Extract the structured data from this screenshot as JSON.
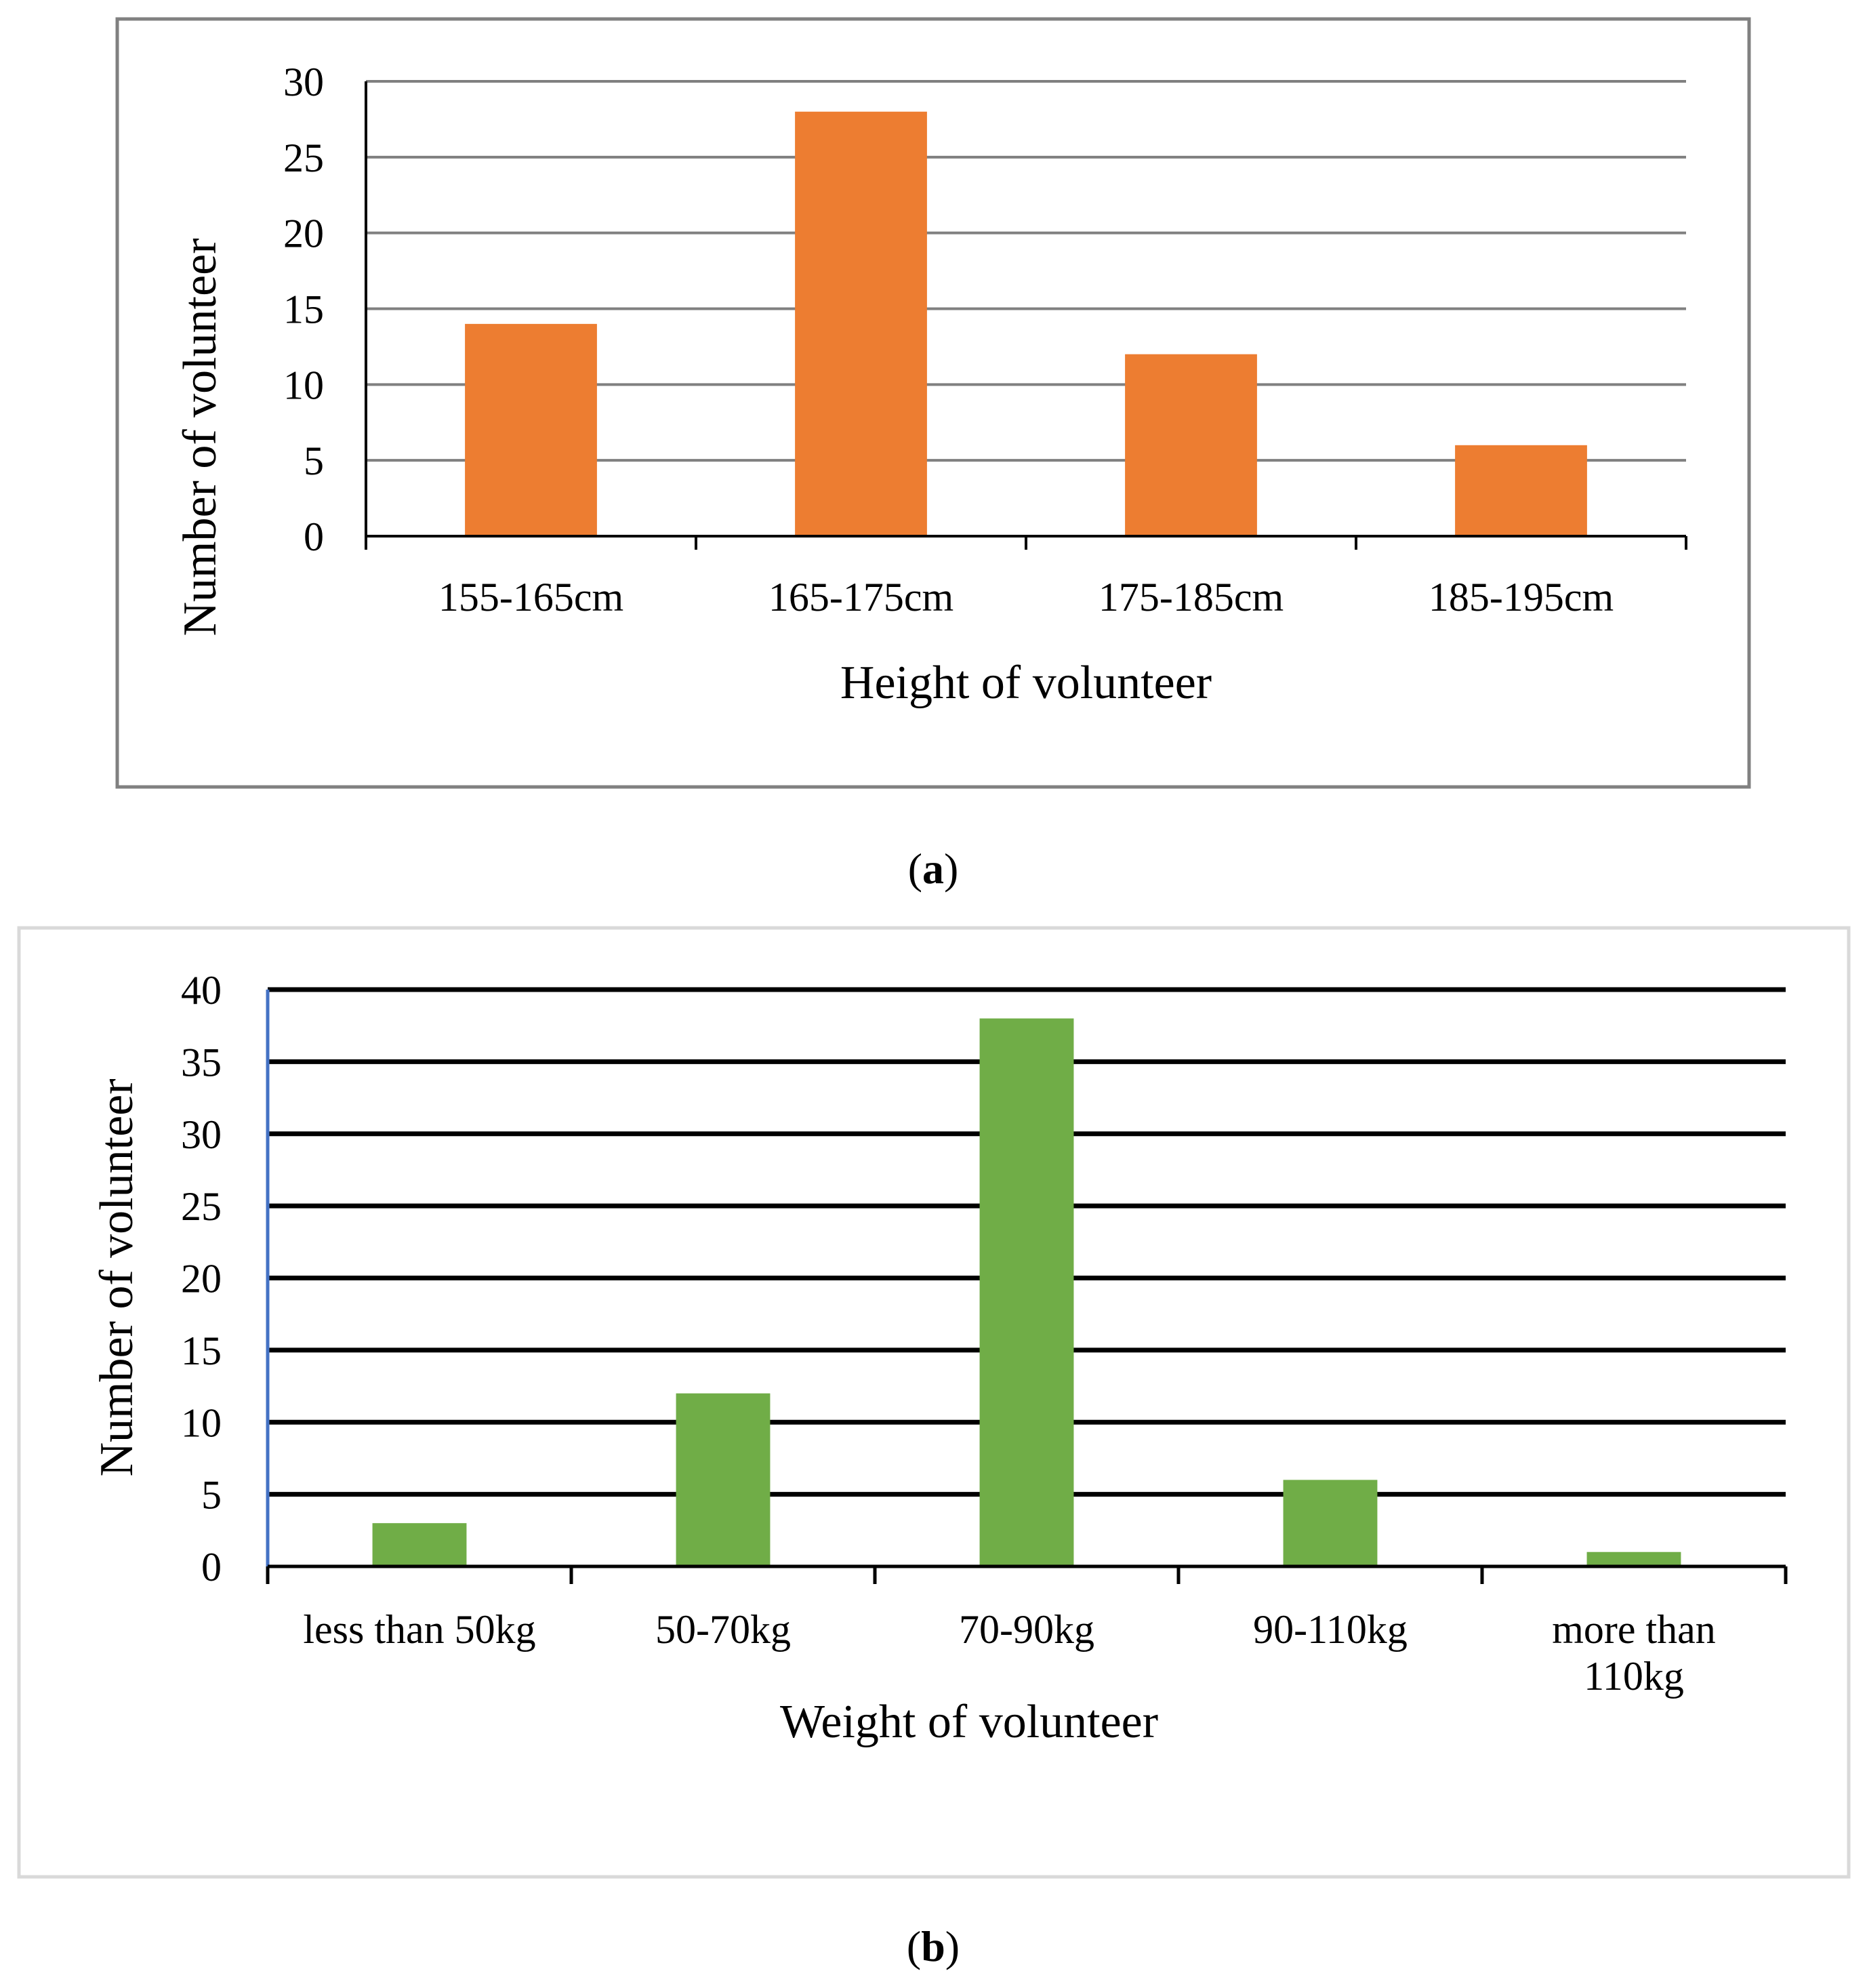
{
  "chart_data": [
    {
      "type": "bar",
      "panel_label": "a",
      "title": "",
      "categories": [
        "155-165cm",
        "165-175cm",
        "175-185cm",
        "185-195cm"
      ],
      "values": [
        14,
        28,
        12,
        6
      ],
      "xlabel": "Height of volunteer",
      "ylabel": "Number of volunteer",
      "ylim": [
        0,
        30
      ],
      "yticks": [
        0,
        5,
        10,
        15,
        20,
        25,
        30
      ],
      "grid": true,
      "bar_color": "#ED7D31",
      "grid_color": "#808080",
      "frame_color": "#808080"
    },
    {
      "type": "bar",
      "panel_label": "b",
      "title": "",
      "categories": [
        "less than 50kg",
        "50-70kg",
        "70-90kg",
        "90-110kg",
        "more than 110kg"
      ],
      "category_lines": [
        [
          "less than 50kg"
        ],
        [
          "50-70kg"
        ],
        [
          "70-90kg"
        ],
        [
          "90-110kg"
        ],
        [
          "more than",
          "110kg"
        ]
      ],
      "values": [
        3,
        12,
        38,
        6,
        1
      ],
      "xlabel": "Weight of volunteer",
      "ylabel": "Number of volunteer",
      "ylim": [
        0,
        40
      ],
      "yticks": [
        0,
        5,
        10,
        15,
        20,
        25,
        30,
        35,
        40
      ],
      "grid": true,
      "bar_color": "#70AD47",
      "grid_color": "#000000",
      "frame_color": "#D9D9D9",
      "yaxis_color": "#4472C4"
    }
  ]
}
